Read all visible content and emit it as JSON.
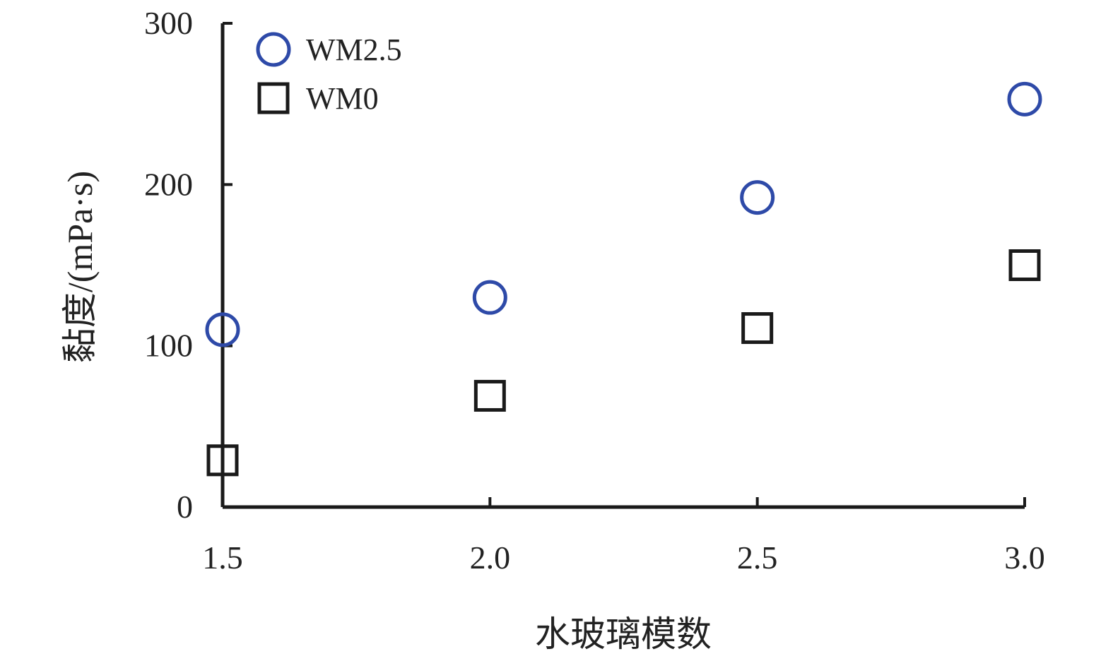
{
  "chart_data": {
    "type": "scatter",
    "x": [
      1.5,
      2.0,
      2.5,
      3.0
    ],
    "xticks": [
      "1.5",
      "2.0",
      "2.5",
      "3.0"
    ],
    "xlim": [
      1.5,
      3.0
    ],
    "ylim": [
      0,
      300
    ],
    "yticks": [
      {
        "value": 0,
        "label": "0"
      },
      {
        "value": 100,
        "label": "100"
      },
      {
        "value": 200,
        "label": "200"
      },
      {
        "value": 300,
        "label": "300"
      }
    ],
    "xlabel": "水玻璃模数",
    "ylabel": "黏度/(mPa·s)",
    "legend_position": "top-left",
    "grid": false,
    "series": [
      {
        "name": "WM2.5",
        "marker": "circle",
        "color": "#2e4aa8",
        "values": [
          110,
          130,
          192,
          253
        ]
      },
      {
        "name": "WM0",
        "marker": "square",
        "color": "#1a1a1a",
        "values": [
          29,
          69,
          111,
          150
        ]
      }
    ]
  }
}
